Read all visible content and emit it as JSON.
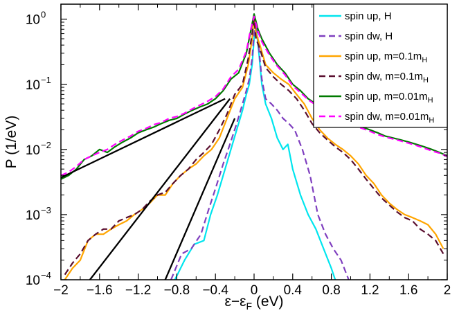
{
  "chart_data": {
    "type": "line",
    "title": "",
    "xlabel": {
      "base": "ε−ε",
      "sub": "F",
      "unit": " (eV)"
    },
    "ylabel": "P (1/eV)",
    "xlim": [
      -2,
      2
    ],
    "ylim": [
      0.0001,
      1.7
    ],
    "yscale": "log",
    "legend_position": "top-right",
    "x_ticks": [
      -2,
      -1.6,
      -1.2,
      -0.8,
      -0.4,
      0,
      0.4,
      0.8,
      1.2,
      1.6,
      2
    ],
    "x_tick_labels": [
      "−2",
      "−1.6",
      "−1.2",
      "−0.8",
      "−0.4",
      "0",
      "0.4",
      "0.8",
      "1.2",
      "1.6",
      "2"
    ],
    "y_ticks": [
      0.0001,
      0.001,
      0.01,
      0.1,
      1
    ],
    "y_tick_labels": [
      {
        "base": "10",
        "exp": "−4"
      },
      {
        "base": "10",
        "exp": "−3"
      },
      {
        "base": "10",
        "exp": "−2"
      },
      {
        "base": "10",
        "exp": "−1"
      },
      {
        "base": "10",
        "exp": "0"
      }
    ],
    "series": [
      {
        "name": "spin up, H",
        "sub": "",
        "color": "#00e5ee",
        "dash": "solid",
        "x": [
          -0.82,
          -0.72,
          -0.62,
          -0.52,
          -0.45,
          -0.38,
          -0.3,
          -0.24,
          -0.18,
          -0.12,
          -0.08,
          -0.05,
          -0.02,
          0.0,
          0.02,
          0.05,
          0.08,
          0.12,
          0.18,
          0.24,
          0.3,
          0.35,
          0.4,
          0.48,
          0.56,
          0.64,
          0.72,
          0.8,
          0.84
        ],
        "y": [
          0.0001,
          0.0002,
          0.00035,
          0.0004,
          0.001,
          0.002,
          0.005,
          0.01,
          0.02,
          0.04,
          0.07,
          0.1,
          0.2,
          0.5,
          0.8,
          0.3,
          0.1,
          0.05,
          0.03,
          0.015,
          0.01,
          0.012,
          0.005,
          0.002,
          0.001,
          0.0006,
          0.0003,
          0.00015,
          0.0001
        ]
      },
      {
        "name": "spin dw, H",
        "sub": "",
        "color": "#7f3fbf",
        "dash": "dashed",
        "x": [
          -0.86,
          -0.75,
          -0.65,
          -0.55,
          -0.47,
          -0.4,
          -0.32,
          -0.25,
          -0.18,
          -0.12,
          -0.08,
          -0.05,
          -0.02,
          0.0,
          0.02,
          0.05,
          0.08,
          0.12,
          0.18,
          0.24,
          0.3,
          0.36,
          0.42,
          0.5,
          0.58,
          0.66,
          0.74,
          0.82,
          0.9,
          0.98
        ],
        "y": [
          0.0001,
          0.00025,
          0.0003,
          0.0005,
          0.0012,
          0.0025,
          0.006,
          0.012,
          0.025,
          0.05,
          0.08,
          0.12,
          0.25,
          0.6,
          0.9,
          0.35,
          0.12,
          0.06,
          0.05,
          0.04,
          0.03,
          0.025,
          0.02,
          0.01,
          0.004,
          0.001,
          0.0005,
          0.0003,
          0.0002,
          0.0001
        ]
      },
      {
        "name": "spin up, m=0.1m",
        "sub": "H",
        "color": "#ffa500",
        "dash": "solid",
        "x": [
          -1.96,
          -1.88,
          -1.8,
          -1.72,
          -1.64,
          -1.56,
          -1.48,
          -1.4,
          -1.32,
          -1.24,
          -1.16,
          -1.08,
          -1.0,
          -0.92,
          -0.84,
          -0.76,
          -0.68,
          -0.6,
          -0.52,
          -0.44,
          -0.36,
          -0.28,
          -0.2,
          -0.12,
          -0.06,
          -0.02,
          0.0,
          0.02,
          0.06,
          0.12,
          0.2,
          0.28,
          0.36,
          0.44,
          0.52,
          0.6,
          0.68,
          0.76,
          0.84,
          0.92,
          1.0,
          1.08,
          1.16,
          1.24,
          1.32,
          1.4,
          1.48,
          1.56,
          1.64,
          1.72,
          1.8,
          1.88,
          1.96
        ],
        "y": [
          0.0001,
          0.00015,
          0.0002,
          0.0004,
          0.0005,
          0.0005,
          0.0006,
          0.0007,
          0.0008,
          0.001,
          0.0012,
          0.0015,
          0.002,
          0.002,
          0.003,
          0.004,
          0.005,
          0.006,
          0.008,
          0.01,
          0.015,
          0.03,
          0.06,
          0.09,
          0.2,
          0.5,
          1.1,
          0.6,
          0.4,
          0.2,
          0.15,
          0.12,
          0.1,
          0.07,
          0.05,
          0.03,
          0.02,
          0.015,
          0.012,
          0.01,
          0.008,
          0.006,
          0.004,
          0.003,
          0.002,
          0.0015,
          0.0012,
          0.001,
          0.0009,
          0.0008,
          0.0007,
          0.0005,
          0.0003
        ]
      },
      {
        "name": "spin dw, m=0.1m",
        "sub": "H",
        "color": "#5a0f2f",
        "dash": "dashed",
        "x": [
          -1.96,
          -1.88,
          -1.8,
          -1.72,
          -1.64,
          -1.56,
          -1.48,
          -1.4,
          -1.32,
          -1.24,
          -1.16,
          -1.08,
          -1.0,
          -0.92,
          -0.84,
          -0.76,
          -0.68,
          -0.6,
          -0.52,
          -0.44,
          -0.36,
          -0.28,
          -0.2,
          -0.12,
          -0.06,
          -0.02,
          0.0,
          0.02,
          0.06,
          0.12,
          0.2,
          0.28,
          0.36,
          0.44,
          0.52,
          0.6,
          0.68,
          0.76,
          0.84,
          0.92,
          1.0,
          1.08,
          1.16,
          1.24,
          1.32,
          1.4,
          1.48,
          1.56,
          1.64,
          1.72,
          1.8,
          1.88,
          1.96
        ],
        "y": [
          0.00012,
          0.00018,
          0.00025,
          0.0004,
          0.0005,
          0.0006,
          0.0006,
          0.0008,
          0.0009,
          0.001,
          0.0012,
          0.0016,
          0.002,
          0.0022,
          0.003,
          0.004,
          0.005,
          0.007,
          0.009,
          0.012,
          0.02,
          0.035,
          0.07,
          0.1,
          0.25,
          0.6,
          1.0,
          0.5,
          0.35,
          0.18,
          0.13,
          0.1,
          0.08,
          0.06,
          0.04,
          0.025,
          0.018,
          0.014,
          0.011,
          0.009,
          0.007,
          0.005,
          0.0035,
          0.0025,
          0.0018,
          0.0014,
          0.0011,
          0.0009,
          0.0008,
          0.0006,
          0.0005,
          0.0004,
          0.00025
        ]
      },
      {
        "name": "spin up, m=0.01m",
        "sub": "H",
        "color": "#007a00",
        "dash": "solid",
        "x": [
          -2.0,
          -1.92,
          -1.84,
          -1.76,
          -1.68,
          -1.6,
          -1.52,
          -1.44,
          -1.36,
          -1.28,
          -1.2,
          -1.12,
          -1.04,
          -0.96,
          -0.88,
          -0.8,
          -0.72,
          -0.64,
          -0.56,
          -0.48,
          -0.4,
          -0.32,
          -0.24,
          -0.16,
          -0.08,
          -0.04,
          0.0,
          0.04,
          0.08,
          0.16,
          0.24,
          0.32,
          0.4,
          0.48,
          0.56,
          0.64,
          0.72,
          0.8,
          0.88,
          0.96,
          1.04,
          1.12,
          1.2,
          1.28,
          1.36,
          1.44,
          1.52,
          1.6,
          1.68,
          1.76,
          1.84,
          1.92,
          2.0
        ],
        "y": [
          0.0035,
          0.004,
          0.005,
          0.007,
          0.008,
          0.01,
          0.009,
          0.011,
          0.013,
          0.015,
          0.018,
          0.02,
          0.022,
          0.025,
          0.028,
          0.03,
          0.035,
          0.04,
          0.045,
          0.05,
          0.06,
          0.08,
          0.12,
          0.15,
          0.3,
          0.6,
          1.2,
          0.7,
          0.5,
          0.3,
          0.2,
          0.15,
          0.1,
          0.08,
          0.06,
          0.05,
          0.04,
          0.035,
          0.03,
          0.028,
          0.025,
          0.022,
          0.02,
          0.018,
          0.016,
          0.015,
          0.014,
          0.013,
          0.012,
          0.011,
          0.01,
          0.009,
          0.008
        ]
      },
      {
        "name": "spin dw, m=0.01m",
        "sub": "H",
        "color": "#ff00ff",
        "dash": "dashed",
        "x": [
          -2.0,
          -1.92,
          -1.84,
          -1.76,
          -1.68,
          -1.6,
          -1.52,
          -1.44,
          -1.36,
          -1.28,
          -1.2,
          -1.12,
          -1.04,
          -0.96,
          -0.88,
          -0.8,
          -0.72,
          -0.64,
          -0.56,
          -0.48,
          -0.4,
          -0.32,
          -0.24,
          -0.16,
          -0.08,
          -0.04,
          0.0,
          0.04,
          0.08,
          0.16,
          0.24,
          0.32,
          0.4,
          0.48,
          0.56,
          0.64,
          0.72,
          0.8,
          0.88,
          0.96,
          1.04,
          1.12,
          1.2,
          1.28,
          1.36,
          1.44,
          1.52,
          1.6,
          1.68,
          1.76,
          1.84,
          1.92,
          2.0
        ],
        "y": [
          0.004,
          0.0045,
          0.0055,
          0.007,
          0.008,
          0.009,
          0.01,
          0.012,
          0.014,
          0.016,
          0.019,
          0.021,
          0.024,
          0.026,
          0.03,
          0.032,
          0.036,
          0.042,
          0.048,
          0.055,
          0.065,
          0.085,
          0.13,
          0.17,
          0.32,
          0.65,
          1.1,
          0.65,
          0.45,
          0.28,
          0.19,
          0.14,
          0.095,
          0.075,
          0.058,
          0.048,
          0.039,
          0.033,
          0.029,
          0.026,
          0.023,
          0.021,
          0.019,
          0.017,
          0.0155,
          0.0145,
          0.0135,
          0.0125,
          0.0115,
          0.0105,
          0.0095,
          0.0088,
          0.0078
        ]
      }
    ],
    "fit_lines": [
      {
        "color": "#000000",
        "x": [
          -2.0,
          -0.3
        ],
        "y": [
          0.0037,
          0.06
        ]
      },
      {
        "color": "#000000",
        "x": [
          -1.7,
          -0.25
        ],
        "y": [
          0.0001,
          0.06
        ]
      },
      {
        "color": "#000000",
        "x": [
          -0.92,
          -0.2
        ],
        "y": [
          0.0001,
          0.03
        ]
      }
    ]
  }
}
